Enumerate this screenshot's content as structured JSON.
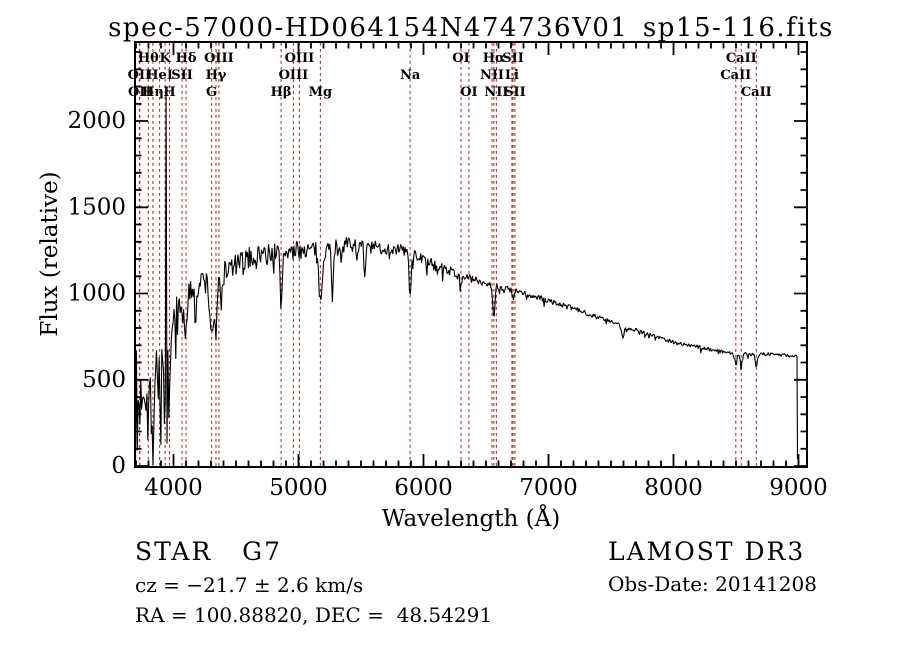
{
  "title": "spec-57000-HD064154N474736V01_sp15-116.fits",
  "axes": {
    "xlabel": "Wavelength (Å)",
    "ylabel": "Flux (relative)",
    "x_ticks": [
      4000,
      5000,
      6000,
      7000,
      8000,
      9000
    ],
    "y_ticks": [
      0,
      500,
      1000,
      1500,
      2000
    ],
    "x_minor_step": 100,
    "y_minor_step": 100,
    "x_range": [
      3692,
      9068
    ],
    "y_range": [
      0,
      2458
    ]
  },
  "annotations": {
    "class_label": "STAR   G7",
    "cz": "cz = −21.7 ± 2.6 km/s",
    "radec": "RA = 100.88820, DEC =  48.54291",
    "survey": "LAMOST DR3",
    "obs_date": "Obs-Date: 20141208"
  },
  "colors": {
    "background": "#ffffff",
    "spectrum": "#000000",
    "marker_line": "#9a3434",
    "frame": "#000000",
    "text": "#000000"
  },
  "chart_data": {
    "type": "line",
    "series_name": "flux",
    "title": "spec-57000-HD064154N474736V01_sp15-116.fits",
    "xlabel": "Wavelength (Å)",
    "ylabel": "Flux (relative)",
    "xlim": [
      3692,
      9068
    ],
    "ylim": [
      0,
      2458
    ],
    "x_unit": "Angstrom",
    "spectral_lines": [
      {
        "wavelength": 3727,
        "label": "OII",
        "row": 2
      },
      {
        "wavelength": 3730,
        "label": "OII",
        "row": 3
      },
      {
        "wavelength": 3798,
        "label": "Hθ",
        "row": 1
      },
      {
        "wavelength": 3835,
        "label": "Hη",
        "row": 3
      },
      {
        "wavelength": 3889,
        "label": "HeI",
        "row": 2
      },
      {
        "wavelength": 3933,
        "label": "K",
        "row": 1
      },
      {
        "wavelength": 3968,
        "label": "H",
        "row": 3
      },
      {
        "wavelength": 4068,
        "label": "SII",
        "row": 2
      },
      {
        "wavelength": 4101,
        "label": "Hδ",
        "row": 1
      },
      {
        "wavelength": 4305,
        "label": "G",
        "row": 3
      },
      {
        "wavelength": 4340,
        "label": "Hγ",
        "row": 2
      },
      {
        "wavelength": 4363,
        "label": "OIII",
        "row": 1
      },
      {
        "wavelength": 4861,
        "label": "Hβ",
        "row": 3
      },
      {
        "wavelength": 4959,
        "label": "OIII",
        "row": 2
      },
      {
        "wavelength": 5007,
        "label": "OIII",
        "row": 1
      },
      {
        "wavelength": 5175,
        "label": "Mg",
        "row": 3
      },
      {
        "wavelength": 5893,
        "label": "Na",
        "row": 2
      },
      {
        "wavelength": 6300,
        "label": "OI",
        "row": 1
      },
      {
        "wavelength": 6363,
        "label": "OI",
        "row": 3
      },
      {
        "wavelength": 6548,
        "label": "NII",
        "row": 2
      },
      {
        "wavelength": 6563,
        "label": "Hα",
        "row": 1
      },
      {
        "wavelength": 6583,
        "label": "NII",
        "row": 3
      },
      {
        "wavelength": 6707,
        "label": "Li",
        "row": 2
      },
      {
        "wavelength": 6716,
        "label": "SII",
        "row": 1
      },
      {
        "wavelength": 6731,
        "label": "SII",
        "row": 3
      },
      {
        "wavelength": 8498,
        "label": "CaII",
        "row": 2
      },
      {
        "wavelength": 8542,
        "label": "CaII",
        "row": 1
      },
      {
        "wavelength": 8662,
        "label": "CaII",
        "row": 3
      }
    ],
    "continuum": [
      [
        3696,
        500
      ],
      [
        3750,
        480
      ],
      [
        3800,
        520
      ],
      [
        3850,
        580
      ],
      [
        3900,
        660
      ],
      [
        3950,
        740
      ],
      [
        4000,
        860
      ],
      [
        4050,
        940
      ],
      [
        4100,
        1000
      ],
      [
        4150,
        1030
      ],
      [
        4200,
        1060
      ],
      [
        4250,
        1070
      ],
      [
        4300,
        1080
      ],
      [
        4350,
        1100
      ],
      [
        4400,
        1120
      ],
      [
        4450,
        1145
      ],
      [
        4500,
        1165
      ],
      [
        4550,
        1185
      ],
      [
        4600,
        1205
      ],
      [
        4700,
        1230
      ],
      [
        4800,
        1240
      ],
      [
        4900,
        1245
      ],
      [
        5000,
        1250
      ],
      [
        5100,
        1255
      ],
      [
        5200,
        1262
      ],
      [
        5300,
        1272
      ],
      [
        5400,
        1285
      ],
      [
        5500,
        1272
      ],
      [
        5600,
        1265
      ],
      [
        5700,
        1262
      ],
      [
        5800,
        1256
      ],
      [
        5900,
        1242
      ],
      [
        6000,
        1195
      ],
      [
        6100,
        1165
      ],
      [
        6200,
        1135
      ],
      [
        6300,
        1105
      ],
      [
        6400,
        1082
      ],
      [
        6500,
        1060
      ],
      [
        6600,
        1040
      ],
      [
        6700,
        1020
      ],
      [
        6800,
        1000
      ],
      [
        6900,
        978
      ],
      [
        7000,
        958
      ],
      [
        7100,
        935
      ],
      [
        7200,
        912
      ],
      [
        7300,
        888
      ],
      [
        7400,
        862
      ],
      [
        7500,
        836
      ],
      [
        7600,
        806
      ],
      [
        7700,
        790
      ],
      [
        7800,
        766
      ],
      [
        7900,
        742
      ],
      [
        8000,
        718
      ],
      [
        8100,
        702
      ],
      [
        8200,
        690
      ],
      [
        8300,
        676
      ],
      [
        8400,
        662
      ],
      [
        8500,
        652
      ],
      [
        8600,
        650
      ],
      [
        8700,
        650
      ],
      [
        8800,
        648
      ],
      [
        8900,
        642
      ],
      [
        8992,
        636
      ]
    ],
    "absorption_features": [
      {
        "center": 3727,
        "depth": 160,
        "width": 10
      },
      {
        "center": 3798,
        "depth": 200,
        "width": 10
      },
      {
        "center": 3835,
        "depth": 220,
        "width": 10
      },
      {
        "center": 3889,
        "depth": 180,
        "width": 10
      },
      {
        "center": 3933,
        "depth": 380,
        "width": 11
      },
      {
        "center": 3968,
        "depth": 340,
        "width": 11
      },
      {
        "center": 4068,
        "depth": 90,
        "width": 8
      },
      {
        "center": 4101,
        "depth": 240,
        "width": 11
      },
      {
        "center": 4305,
        "depth": 300,
        "width": 16
      },
      {
        "center": 4340,
        "depth": 330,
        "width": 10
      },
      {
        "center": 4383,
        "depth": 150,
        "width": 8
      },
      {
        "center": 4861,
        "depth": 330,
        "width": 8
      },
      {
        "center": 5175,
        "depth": 300,
        "width": 14
      },
      {
        "center": 5270,
        "depth": 280,
        "width": 7
      },
      {
        "center": 5530,
        "depth": 200,
        "width": 6
      },
      {
        "center": 5893,
        "depth": 280,
        "width": 8
      },
      {
        "center": 6300,
        "depth": 60,
        "width": 6
      },
      {
        "center": 6563,
        "depth": 190,
        "width": 8
      },
      {
        "center": 6717,
        "depth": 60,
        "width": 6
      },
      {
        "center": 7594,
        "depth": 60,
        "width": 10
      },
      {
        "center": 8498,
        "depth": 60,
        "width": 8
      },
      {
        "center": 8542,
        "depth": 70,
        "width": 8
      },
      {
        "center": 8662,
        "depth": 75,
        "width": 8
      }
    ],
    "noise_amplitude": [
      [
        3696,
        200
      ],
      [
        3800,
        210
      ],
      [
        3900,
        190
      ],
      [
        3960,
        150
      ],
      [
        4000,
        95
      ],
      [
        4100,
        85
      ],
      [
        4300,
        80
      ],
      [
        4500,
        68
      ],
      [
        4800,
        58
      ],
      [
        5100,
        50
      ],
      [
        5400,
        45
      ],
      [
        5700,
        40
      ],
      [
        5900,
        32
      ],
      [
        6200,
        26
      ],
      [
        6500,
        21
      ],
      [
        6800,
        18
      ],
      [
        7100,
        16
      ],
      [
        7500,
        13
      ],
      [
        8000,
        12
      ],
      [
        8500,
        11
      ],
      [
        9000,
        10
      ]
    ],
    "spikes": [
      {
        "wavelength": 3700,
        "top": 670,
        "bottom": 90
      },
      {
        "wavelength": 3940,
        "top": 2150,
        "bottom": 130
      }
    ],
    "cutoff": {
      "wavelength": 8992,
      "drop_to": 40
    },
    "sample_step": 7,
    "noise_seed": 7
  }
}
